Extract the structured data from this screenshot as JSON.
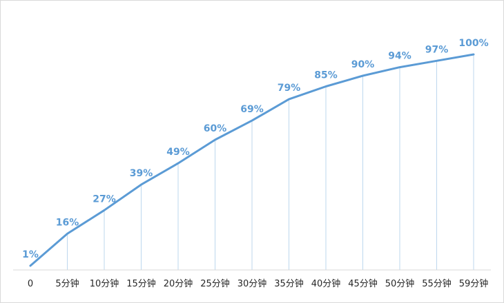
{
  "chart_data": {
    "type": "line",
    "title": "",
    "xlabel": "",
    "ylabel": "",
    "categories": [
      "0",
      "5分钟",
      "10分钟",
      "15分钟",
      "20分钟",
      "25分钟",
      "30分钟",
      "35分钟",
      "40分钟",
      "45分钟",
      "50分钟",
      "55分钟",
      "59分钟"
    ],
    "values": [
      1,
      16,
      27,
      39,
      49,
      60,
      69,
      79,
      85,
      90,
      94,
      97,
      100
    ],
    "data_labels": [
      "1%",
      "16%",
      "27%",
      "39%",
      "49%",
      "60%",
      "69%",
      "79%",
      "85%",
      "90%",
      "94%",
      "97%",
      "100%"
    ],
    "ylim": [
      0,
      100
    ],
    "grid": false,
    "drop_lines": true,
    "legend": "none",
    "line_color": "#5b9bd5",
    "drop_line_color": "#bdd7ee"
  }
}
